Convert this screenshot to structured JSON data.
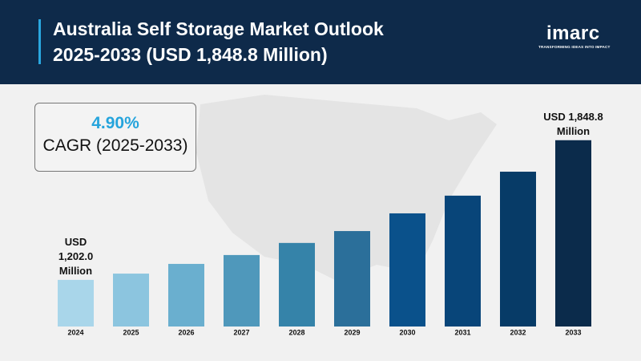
{
  "header": {
    "title": "Australia Self Storage Market Outlook 2025-2033 (USD 1,848.8 Million)"
  },
  "brand": {
    "logo": "imarc",
    "tagline": "TRANSFORMING IDEAS INTO IMPACT"
  },
  "cagr_box": {
    "value": "4.90%",
    "label": "CAGR (2025-2033)"
  },
  "chart_data": {
    "type": "bar",
    "categories": [
      "2024",
      "2025",
      "2026",
      "2027",
      "2028",
      "2029",
      "2030",
      "2031",
      "2032",
      "2033"
    ],
    "values": [
      1202.0,
      1231,
      1276,
      1317,
      1373,
      1428,
      1510,
      1592,
      1703,
      1848.8
    ],
    "value_labels": [
      "USD 1,202.0 Million",
      null,
      null,
      null,
      null,
      null,
      null,
      null,
      null,
      "USD 1,848.8 Million"
    ],
    "colors": [
      "#a9d6ea",
      "#8cc5df",
      "#6aafcf",
      "#4f98bb",
      "#3583a9",
      "#2b6f9a",
      "#0a518b",
      "#084579",
      "#073b67",
      "#0b2b4b"
    ],
    "ylim": [
      986,
      1900
    ]
  }
}
